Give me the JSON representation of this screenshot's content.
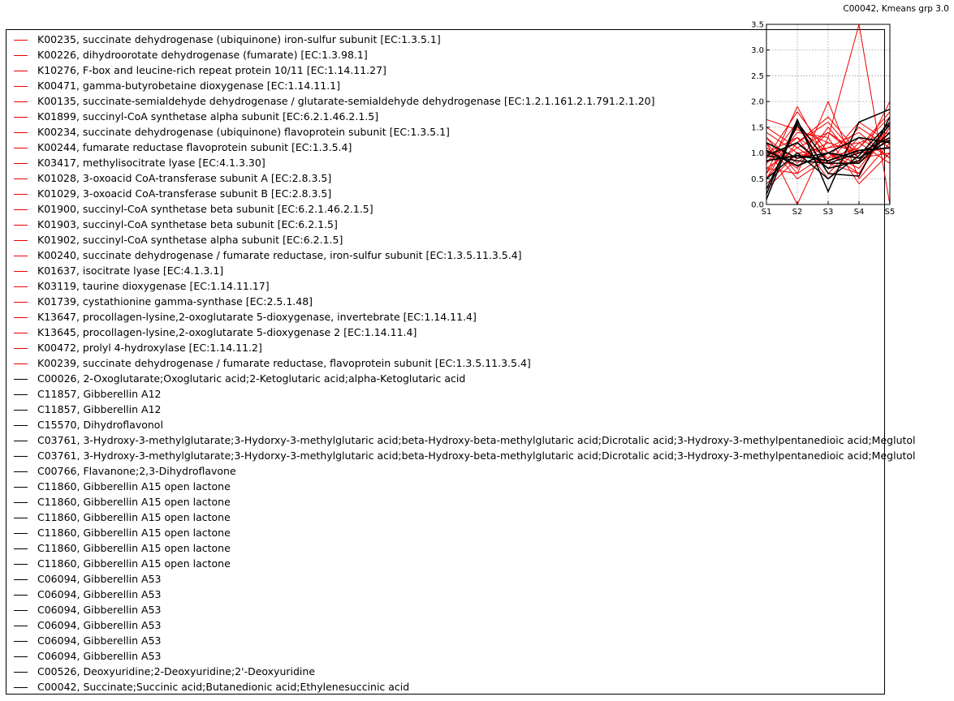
{
  "figure": {
    "title": "C00042, Kmeans grp 3.0"
  },
  "chart_data": {
    "type": "line",
    "title": "C00042, Kmeans grp 3.0",
    "xlabel": "",
    "ylabel": "",
    "categories": [
      "S1",
      "S2",
      "S3",
      "S4",
      "S5"
    ],
    "ylim": [
      0,
      3.5
    ],
    "yticks": [
      "0.0",
      "0.5",
      "1.0",
      "1.5",
      "2.0",
      "2.5",
      "3.0",
      "3.5"
    ],
    "grid": true,
    "legend_position": "left, outside",
    "colors": {
      "gene": "#ee0000",
      "compound": "#000000"
    },
    "series": [
      {
        "name": "K00235, succinate dehydrogenase (ubiquinone) iron-sulfur subunit [EC:1.3.5.1]",
        "kind": "gene",
        "values": [
          0.6,
          1.9,
          0.8,
          0.6,
          1.5
        ]
      },
      {
        "name": "K00226, dihydroorotate dehydrogenase (fumarate) [EC:1.3.98.1]",
        "kind": "gene",
        "values": [
          1.2,
          0.0,
          1.3,
          3.5,
          0.0
        ]
      },
      {
        "name": "K10276, F-box and leucine-rich repeat protein 10/11 [EC:1.14.11.27]",
        "kind": "gene",
        "values": [
          1.65,
          1.45,
          1.2,
          1.0,
          1.3
        ]
      },
      {
        "name": "K00471, gamma-butyrobetaine dioxygenase [EC:1.14.11.1]",
        "kind": "gene",
        "values": [
          0.9,
          1.2,
          1.7,
          1.0,
          1.1
        ]
      },
      {
        "name": "K00135, succinate-semialdehyde dehydrogenase / glutarate-semialdehyde dehydrogenase [EC:1.2.1.161.2.1.791.2.1.20]",
        "kind": "gene",
        "values": [
          0.5,
          1.5,
          1.0,
          0.6,
          1.6
        ]
      },
      {
        "name": "K01899, succinyl-CoA synthetase alpha subunit [EC:6.2.1.46.2.1.5]",
        "kind": "gene",
        "values": [
          0.7,
          0.6,
          2.0,
          0.5,
          1.2
        ]
      },
      {
        "name": "K00234, succinate dehydrogenase (ubiquinone) flavoprotein subunit [EC:1.3.5.1]",
        "kind": "gene",
        "values": [
          1.0,
          1.3,
          0.9,
          1.1,
          1.8
        ]
      },
      {
        "name": "K00244, fumarate reductase flavoprotein subunit [EC:1.3.5.4]",
        "kind": "gene",
        "values": [
          1.3,
          0.8,
          1.4,
          0.9,
          1.0
        ]
      },
      {
        "name": "K03417, methylisocitrate lyase [EC:4.1.3.30]",
        "kind": "gene",
        "values": [
          0.4,
          1.0,
          1.1,
          1.4,
          0.9
        ]
      },
      {
        "name": "K01028, 3-oxoacid CoA-transferase subunit A [EC:2.8.3.5]",
        "kind": "gene",
        "values": [
          1.1,
          0.7,
          1.5,
          0.8,
          2.0
        ]
      },
      {
        "name": "K01029, 3-oxoacid CoA-transferase subunit B [EC:2.8.3.5]",
        "kind": "gene",
        "values": [
          0.8,
          1.6,
          0.6,
          1.2,
          1.4
        ]
      },
      {
        "name": "K01900, succinyl-CoA synthetase beta subunit [EC:6.2.1.46.2.1.5]",
        "kind": "gene",
        "values": [
          1.5,
          1.1,
          0.7,
          1.3,
          0.9
        ]
      },
      {
        "name": "K01903, succinyl-CoA synthetase beta subunit [EC:6.2.1.5]",
        "kind": "gene",
        "values": [
          0.3,
          0.9,
          1.2,
          1.0,
          1.3
        ]
      },
      {
        "name": "K01902, succinyl-CoA synthetase alpha subunit [EC:6.2.1.5]",
        "kind": "gene",
        "values": [
          1.4,
          1.0,
          0.8,
          1.5,
          1.1
        ]
      },
      {
        "name": "K00240, succinate dehydrogenase / fumarate reductase, iron-sulfur subunit [EC:1.3.5.11.3.5.4]",
        "kind": "gene",
        "values": [
          0.9,
          1.8,
          1.0,
          0.7,
          1.5
        ]
      },
      {
        "name": "K01637, isocitrate lyase [EC:4.1.3.1]",
        "kind": "gene",
        "values": [
          0.6,
          1.4,
          1.3,
          0.4,
          1.0
        ]
      },
      {
        "name": "K03119, taurine dioxygenase [EC:1.14.11.17]",
        "kind": "gene",
        "values": [
          1.2,
          0.5,
          0.9,
          1.6,
          1.2
        ]
      },
      {
        "name": "K01739, cystathionine gamma-synthase [EC:2.5.1.48]",
        "kind": "gene",
        "values": [
          0.5,
          1.2,
          1.6,
          0.9,
          1.4
        ]
      },
      {
        "name": "K13647, procollagen-lysine,2-oxoglutarate 5-dioxygenase, invertebrate [EC:1.14.11.4]",
        "kind": "gene",
        "values": [
          1.0,
          0.9,
          1.1,
          1.2,
          0.8
        ]
      },
      {
        "name": "K13645, procollagen-lysine,2-oxoglutarate 5-dioxygenase 2 [EC:1.14.11.4]",
        "kind": "gene",
        "values": [
          0.8,
          1.3,
          0.5,
          1.1,
          1.7
        ]
      },
      {
        "name": "K00472, prolyl 4-hydroxylase [EC:1.14.11.2]",
        "kind": "gene",
        "values": [
          1.3,
          0.6,
          1.0,
          0.8,
          1.3
        ]
      },
      {
        "name": "K00239, succinate dehydrogenase / fumarate reductase, flavoprotein subunit [EC:1.3.5.11.3.5.4]",
        "kind": "gene",
        "values": [
          0.7,
          1.1,
          1.4,
          1.0,
          1.1
        ]
      },
      {
        "name": "C00026, 2-Oxoglutarate;Oxoglutaric acid;2-Ketoglutaric acid;alpha-Ketoglutaric acid",
        "kind": "compound",
        "values": [
          0.2,
          1.65,
          0.25,
          1.6,
          1.85
        ]
      },
      {
        "name": "C11857, Gibberellin A12",
        "kind": "compound",
        "values": [
          0.95,
          1.2,
          0.7,
          0.85,
          1.55
        ]
      },
      {
        "name": "C11857, Gibberellin A12",
        "kind": "compound",
        "values": [
          0.95,
          1.2,
          0.7,
          0.85,
          1.55
        ]
      },
      {
        "name": "C15570, Dihydroflavonol",
        "kind": "compound",
        "values": [
          0.1,
          1.6,
          0.8,
          0.8,
          1.4
        ]
      },
      {
        "name": "C03761, 3-Hydroxy-3-methylglutarate;3-Hydorxy-3-methylglutaric acid;beta-Hydroxy-beta-methylglutaric acid;Dicrotalic acid;3-Hydroxy-3-methylpentanedioic acid;Meglutol",
        "kind": "compound",
        "values": [
          1.2,
          0.9,
          1.0,
          1.3,
          1.2
        ]
      },
      {
        "name": "C03761, 3-Hydroxy-3-methylglutarate;3-Hydorxy-3-methylglutaric acid;beta-Hydroxy-beta-methylglutaric acid;Dicrotalic acid;3-Hydroxy-3-methylpentanedioic acid;Meglutol",
        "kind": "compound",
        "values": [
          1.2,
          0.9,
          1.0,
          1.3,
          1.2
        ]
      },
      {
        "name": "C00766, Flavanone;2,3-Dihydroflavone",
        "kind": "compound",
        "values": [
          0.5,
          1.0,
          0.5,
          0.95,
          1.6
        ]
      },
      {
        "name": "C11860, Gibberellin A15 open lactone",
        "kind": "compound",
        "values": [
          1.05,
          0.75,
          1.0,
          0.9,
          1.25
        ]
      },
      {
        "name": "C11860, Gibberellin A15 open lactone",
        "kind": "compound",
        "values": [
          1.05,
          0.75,
          1.0,
          0.9,
          1.25
        ]
      },
      {
        "name": "C11860, Gibberellin A15 open lactone",
        "kind": "compound",
        "values": [
          1.05,
          0.75,
          1.0,
          0.9,
          1.25
        ]
      },
      {
        "name": "C11860, Gibberellin A15 open lactone",
        "kind": "compound",
        "values": [
          1.05,
          0.75,
          1.0,
          0.9,
          1.25
        ]
      },
      {
        "name": "C11860, Gibberellin A15 open lactone",
        "kind": "compound",
        "values": [
          1.05,
          0.75,
          1.0,
          0.9,
          1.25
        ]
      },
      {
        "name": "C11860, Gibberellin A15 open lactone",
        "kind": "compound",
        "values": [
          1.05,
          0.75,
          1.0,
          0.9,
          1.25
        ]
      },
      {
        "name": "C06094, Gibberellin A53",
        "kind": "compound",
        "values": [
          0.85,
          0.95,
          0.85,
          1.05,
          1.1
        ]
      },
      {
        "name": "C06094, Gibberellin A53",
        "kind": "compound",
        "values": [
          0.85,
          0.95,
          0.85,
          1.05,
          1.1
        ]
      },
      {
        "name": "C06094, Gibberellin A53",
        "kind": "compound",
        "values": [
          0.85,
          0.95,
          0.85,
          1.05,
          1.1
        ]
      },
      {
        "name": "C06094, Gibberellin A53",
        "kind": "compound",
        "values": [
          0.85,
          0.95,
          0.85,
          1.05,
          1.1
        ]
      },
      {
        "name": "C06094, Gibberellin A53",
        "kind": "compound",
        "values": [
          0.85,
          0.95,
          0.85,
          1.05,
          1.1
        ]
      },
      {
        "name": "C06094, Gibberellin A53",
        "kind": "compound",
        "values": [
          0.85,
          0.95,
          0.85,
          1.05,
          1.1
        ]
      },
      {
        "name": "C00526, Deoxyuridine;2-Deoxyuridine;2'-Deoxyuridine",
        "kind": "compound",
        "values": [
          0.3,
          1.55,
          0.6,
          0.55,
          1.7
        ]
      },
      {
        "name": "C00042, Succinate;Succinic acid;Butanedionic acid;Ethylenesuccinic acid",
        "kind": "compound",
        "values": [
          0.95,
          0.85,
          0.8,
          1.0,
          1.3
        ]
      }
    ]
  }
}
